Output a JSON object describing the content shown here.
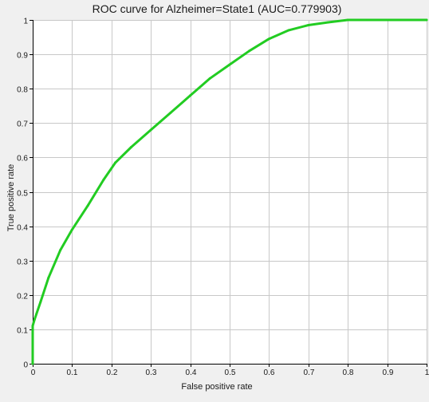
{
  "chart_data": {
    "type": "line",
    "title": "ROC curve for Alzheimer=State1 (AUC=0.779903)",
    "xlabel": "False positive rate",
    "ylabel": "True positive rate",
    "xlim": [
      0,
      1
    ],
    "ylim": [
      0,
      1
    ],
    "xticks": [
      "0",
      "0.1",
      "0.2",
      "0.3",
      "0.4",
      "0.5",
      "0.6",
      "0.7",
      "0.8",
      "0.9",
      "1"
    ],
    "yticks": [
      "0",
      "0.1",
      "0.2",
      "0.3",
      "0.4",
      "0.5",
      "0.6",
      "0.7",
      "0.8",
      "0.9",
      "1"
    ],
    "grid": true,
    "legend": "none",
    "series": [
      {
        "color": "#22cc22",
        "x": [
          0,
          0,
          0.005,
          0.02,
          0.04,
          0.07,
          0.1,
          0.14,
          0.18,
          0.21,
          0.25,
          0.3,
          0.35,
          0.4,
          0.45,
          0.5,
          0.55,
          0.6,
          0.65,
          0.7,
          0.75,
          0.8,
          0.85,
          0.9,
          0.95,
          1
        ],
        "y": [
          0,
          0.11,
          0.13,
          0.18,
          0.25,
          0.33,
          0.39,
          0.46,
          0.535,
          0.585,
          0.63,
          0.68,
          0.73,
          0.78,
          0.83,
          0.87,
          0.91,
          0.945,
          0.97,
          0.985,
          0.993,
          1,
          1,
          1,
          1,
          1
        ]
      }
    ]
  }
}
